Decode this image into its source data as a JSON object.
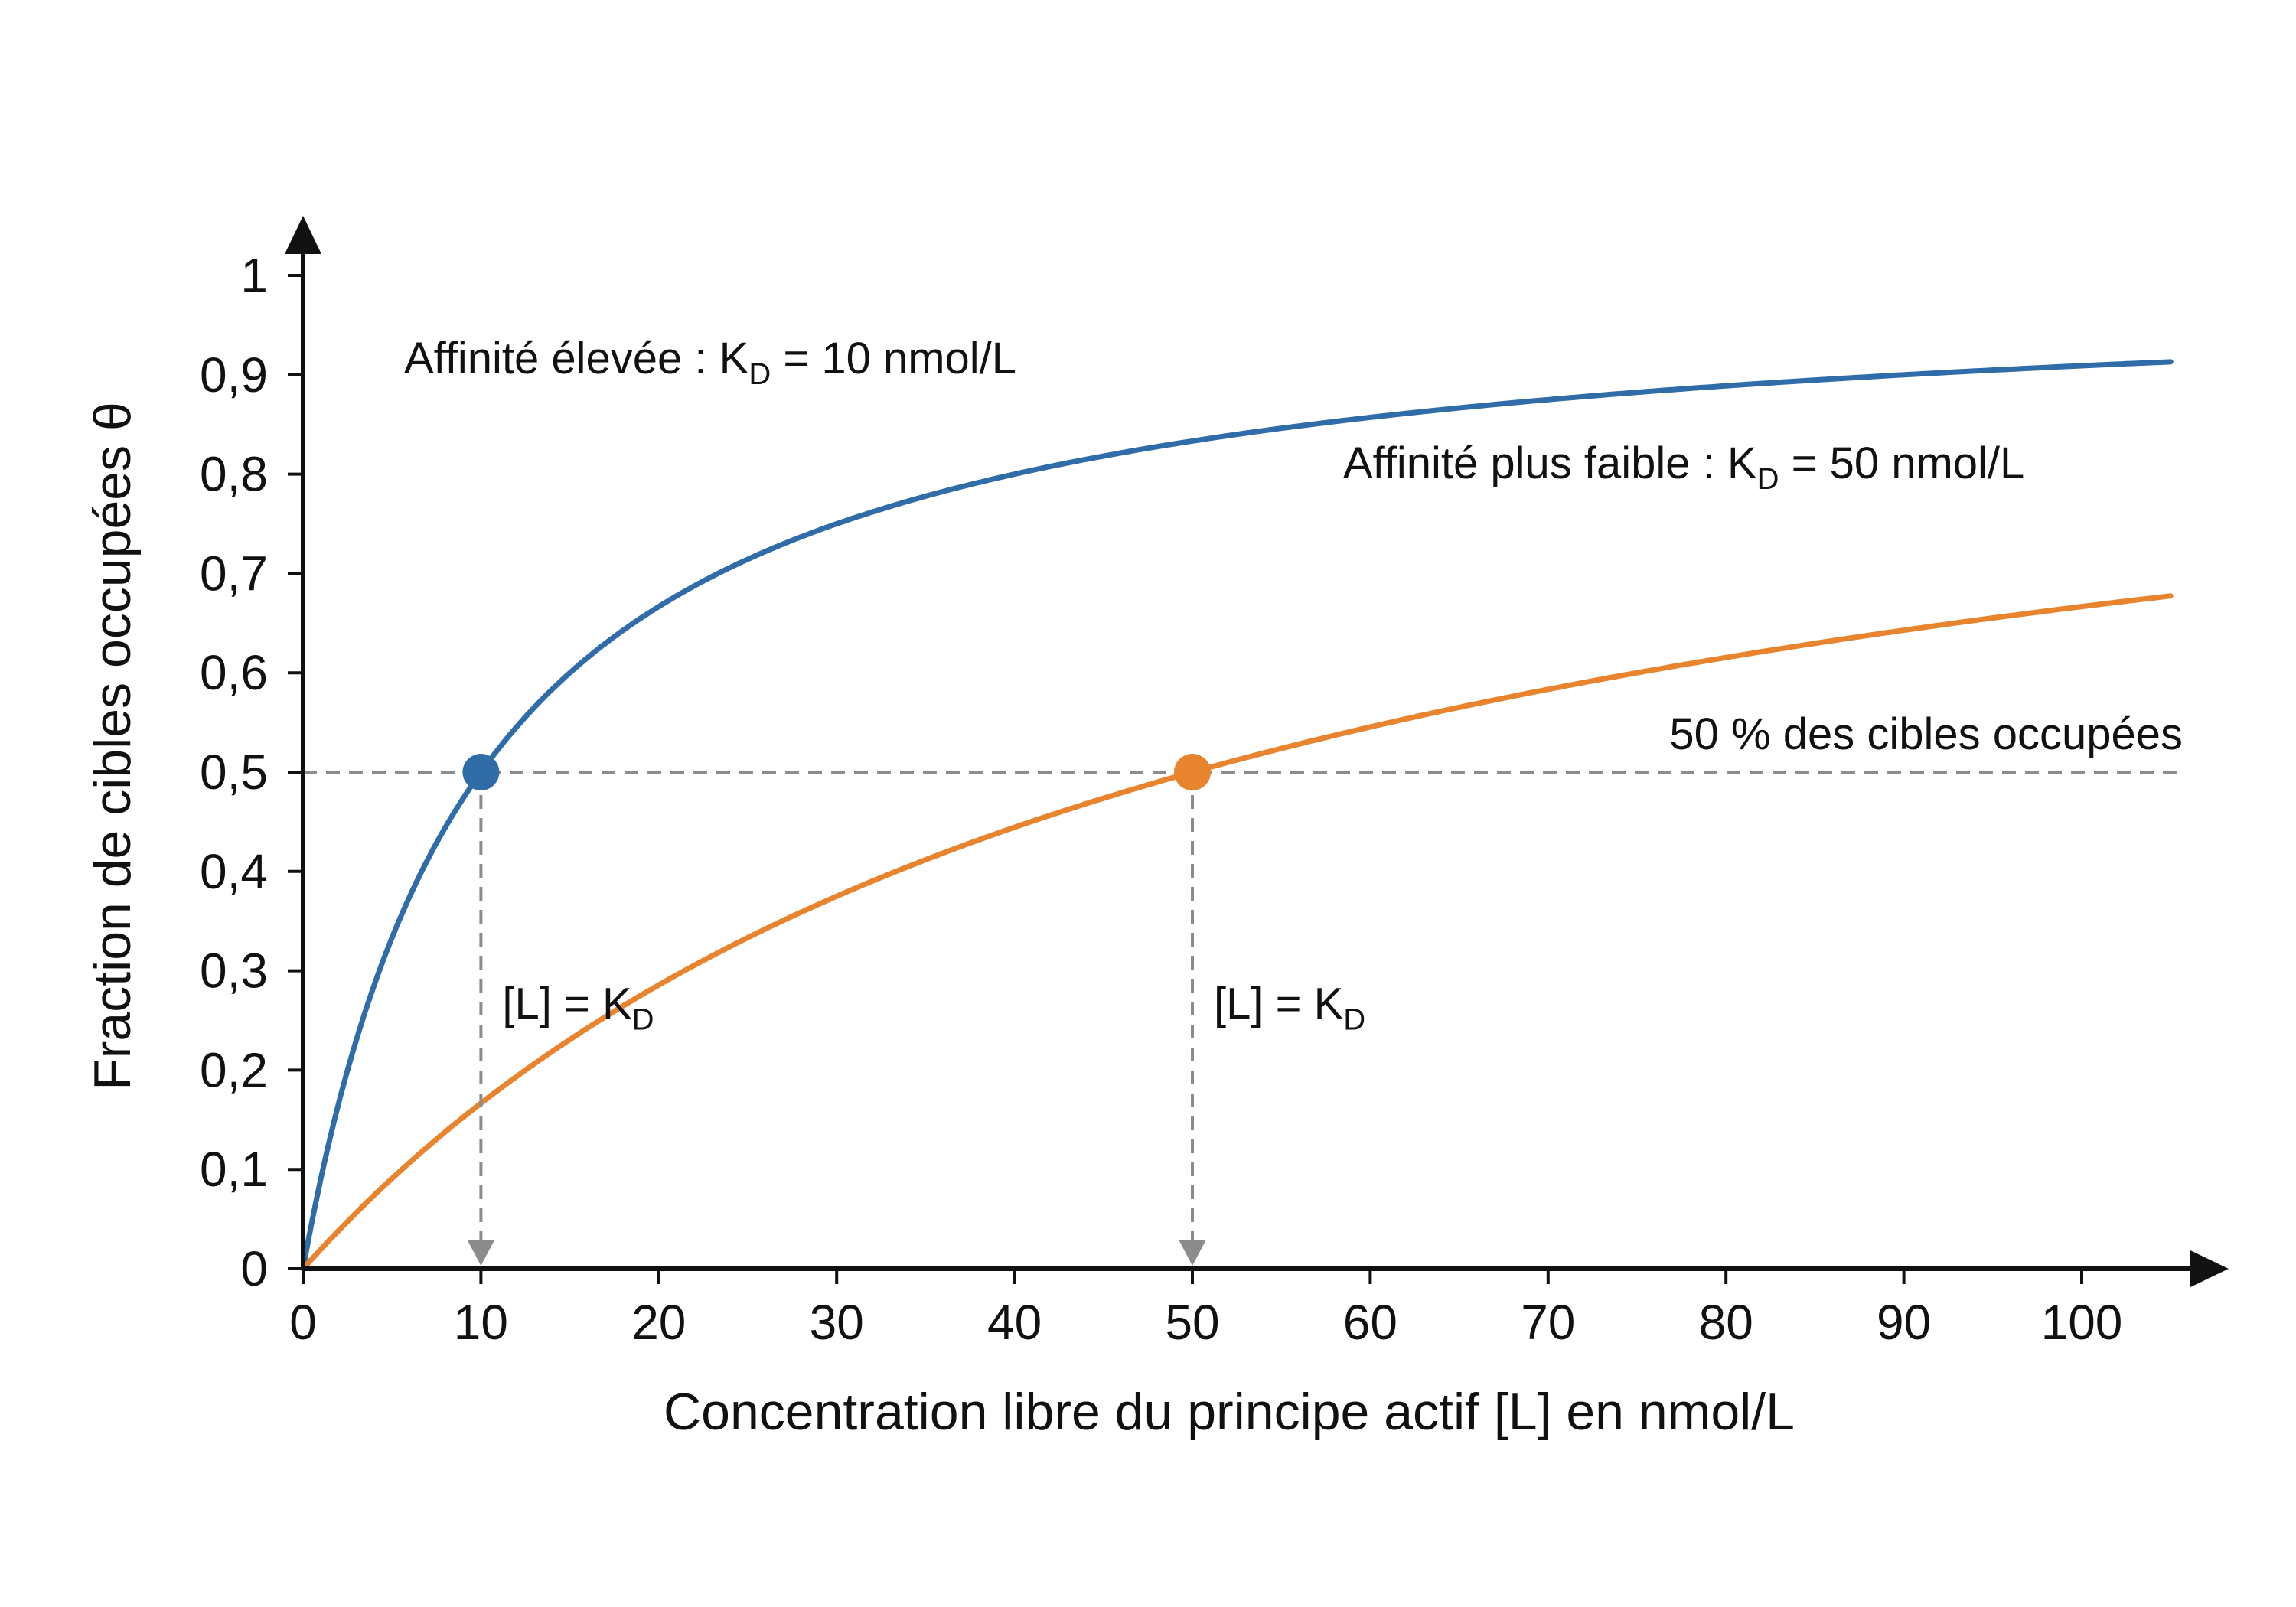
{
  "chart_data": {
    "type": "line",
    "xlabel": "Concentration libre du principe actif [L] en nmol/L",
    "ylabel": "Fraction de cibles occupées θ",
    "xlim": [
      0,
      105
    ],
    "ylim": [
      0,
      1
    ],
    "x_ticks": [
      0,
      10,
      20,
      30,
      40,
      50,
      60,
      70,
      80,
      90,
      100
    ],
    "x_tick_labels": [
      "0",
      "10",
      "20",
      "30",
      "40",
      "50",
      "60",
      "70",
      "80",
      "90",
      "100"
    ],
    "y_ticks": [
      0,
      0.1,
      0.2,
      0.3,
      0.4,
      0.5,
      0.6,
      0.7,
      0.8,
      0.9,
      1
    ],
    "y_tick_labels": [
      "0",
      "0,1",
      "0,2",
      "0,3",
      "0,4",
      "0,5",
      "0,6",
      "0,7",
      "0,8",
      "0,9",
      "1"
    ],
    "grid": false,
    "series": [
      {
        "label_main": "Affinité élevée : K",
        "label_sub": "D",
        "label_tail": " = 10 nmol/L",
        "color": "#2f6ca8",
        "kd": 10,
        "x": [
          0,
          2.5,
          5,
          7.5,
          10,
          15,
          20,
          30,
          40,
          50,
          60,
          70,
          80,
          90,
          100,
          105
        ],
        "y": [
          0,
          0.2,
          0.333,
          0.429,
          0.5,
          0.6,
          0.667,
          0.75,
          0.8,
          0.833,
          0.857,
          0.875,
          0.889,
          0.9,
          0.909,
          0.913
        ],
        "marker": {
          "x": 10,
          "y": 0.5
        }
      },
      {
        "label_main": "Affinité plus faible : K",
        "label_sub": "D",
        "label_tail": " = 50 nmol/L",
        "color": "#e8832e",
        "kd": 50,
        "x": [
          0,
          10,
          20,
          30,
          40,
          50,
          60,
          70,
          80,
          90,
          100,
          105
        ],
        "y": [
          0,
          0.167,
          0.286,
          0.375,
          0.444,
          0.5,
          0.545,
          0.583,
          0.615,
          0.643,
          0.667,
          0.677
        ],
        "marker": {
          "x": 50,
          "y": 0.5
        }
      }
    ],
    "reference_line": {
      "y": 0.5,
      "label": "50 % des cibles occupées",
      "color": "#8c8c8c"
    },
    "drop_lines": [
      {
        "x": 10,
        "label_main": "[L] = K",
        "label_sub": "D"
      },
      {
        "x": 50,
        "label_main": "[L] = K",
        "label_sub": "D"
      }
    ]
  }
}
